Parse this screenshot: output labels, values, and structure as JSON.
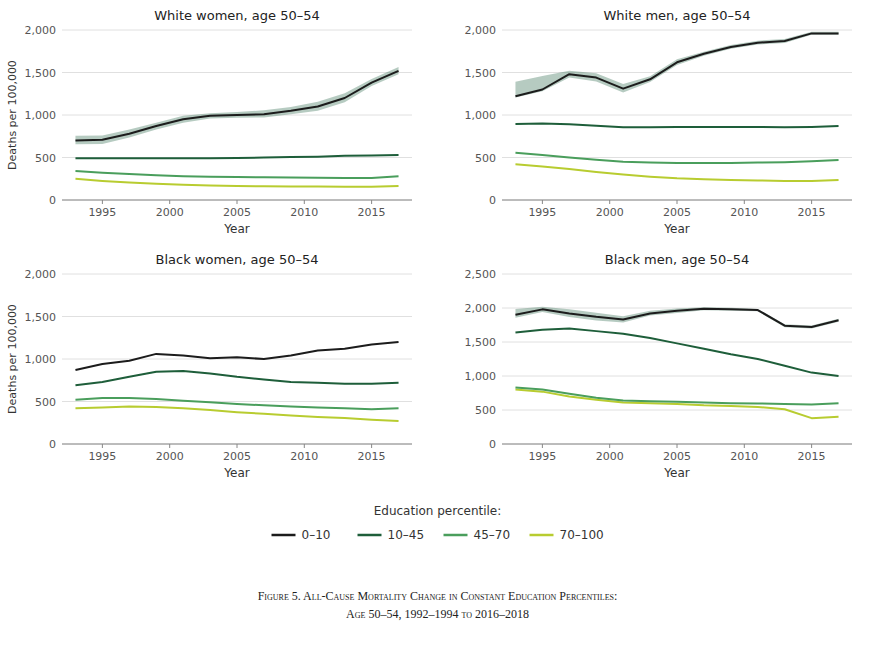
{
  "chart_data": [
    {
      "type": "line",
      "title": "White women, age 50–54",
      "xlabel": "Year",
      "ylabel": "Deaths per 100,000",
      "x": [
        1993,
        1995,
        1997,
        1999,
        2001,
        2003,
        2005,
        2007,
        2009,
        2011,
        2013,
        2015,
        2017
      ],
      "xlim": [
        1992,
        2018
      ],
      "xticks": [
        1995,
        2000,
        2005,
        2010,
        2015
      ],
      "ylim": [
        0,
        2000
      ],
      "yticks": [
        0,
        500,
        {
          "value": 1000,
          "label": "1,000"
        },
        {
          "value": 1500,
          "label": "1,500"
        },
        {
          "value": 2000,
          "label": "2,000"
        }
      ],
      "grid": true,
      "legend": "bottom",
      "series": [
        {
          "name": "0–10",
          "color": "#1c1c1c",
          "values": [
            700,
            710,
            780,
            870,
            950,
            990,
            1000,
            1010,
            1050,
            1100,
            1200,
            1380,
            1520
          ]
        },
        {
          "name": "10–45",
          "color": "#1e5e3a",
          "values": [
            490,
            490,
            490,
            490,
            490,
            490,
            495,
            500,
            505,
            510,
            520,
            525,
            530
          ]
        },
        {
          "name": "45–70",
          "color": "#4a9e5c",
          "values": [
            340,
            320,
            305,
            290,
            280,
            275,
            270,
            268,
            265,
            262,
            260,
            258,
            280
          ]
        },
        {
          "name": "70–100",
          "color": "#b8cc30",
          "values": [
            250,
            225,
            205,
            190,
            180,
            170,
            165,
            162,
            160,
            158,
            155,
            155,
            165
          ]
        }
      ],
      "ci_upper": [
        755,
        760,
        830,
        910,
        990,
        1020,
        1035,
        1055,
        1095,
        1155,
        1255,
        1425,
        1565
      ],
      "ci_lower": [
        655,
        660,
        735,
        830,
        910,
        960,
        968,
        970,
        1008,
        1050,
        1150,
        1340,
        1480
      ],
      "ci_color": "#2d6b4e"
    },
    {
      "type": "line",
      "title": "White men, age 50–54",
      "xlabel": "Year",
      "x": [
        1993,
        1995,
        1997,
        1999,
        2001,
        2003,
        2005,
        2007,
        2009,
        2011,
        2013,
        2015,
        2017
      ],
      "xlim": [
        1992,
        2018
      ],
      "xticks": [
        1995,
        2000,
        2005,
        2010,
        2015
      ],
      "ylim": [
        0,
        2000
      ],
      "yticks": [
        0,
        500,
        {
          "value": 1000,
          "label": "1,000"
        },
        {
          "value": 1500,
          "label": "1,500"
        },
        {
          "value": 2000,
          "label": "2,000"
        }
      ],
      "grid": true,
      "series": [
        {
          "name": "0–10",
          "color": "#1c1c1c",
          "values": [
            1220,
            1300,
            1480,
            1440,
            1310,
            1420,
            1620,
            1720,
            1800,
            1850,
            1870,
            1960,
            1960
          ]
        },
        {
          "name": "10–45",
          "color": "#1e5e3a",
          "values": [
            895,
            900,
            890,
            875,
            855,
            855,
            860,
            860,
            860,
            860,
            855,
            860,
            870
          ]
        },
        {
          "name": "45–70",
          "color": "#4a9e5c",
          "values": [
            555,
            530,
            500,
            475,
            450,
            440,
            435,
            435,
            435,
            440,
            445,
            455,
            470
          ]
        },
        {
          "name": "70–100",
          "color": "#b8cc30",
          "values": [
            420,
            395,
            365,
            330,
            300,
            275,
            255,
            245,
            235,
            230,
            225,
            225,
            235
          ]
        }
      ],
      "ci_upper": [
        1390,
        1460,
        1520,
        1490,
        1365,
        1455,
        1655,
        1745,
        1825,
        1875,
        1895,
        1978,
        1978
      ],
      "ci_lower": [
        1205,
        1280,
        1440,
        1395,
        1265,
        1388,
        1588,
        1698,
        1778,
        1828,
        1848,
        1943,
        1943
      ],
      "ci_color": "#2d6b4e"
    },
    {
      "type": "line",
      "title": "Black women, age 50–54",
      "xlabel": "Year",
      "ylabel": "Deaths per 100,000",
      "x": [
        1993,
        1995,
        1997,
        1999,
        2001,
        2003,
        2005,
        2007,
        2009,
        2011,
        2013,
        2015,
        2017
      ],
      "xlim": [
        1992,
        2018
      ],
      "xticks": [
        1995,
        2000,
        2005,
        2010,
        2015
      ],
      "ylim": [
        0,
        2000
      ],
      "yticks": [
        0,
        500,
        {
          "value": 1000,
          "label": "1,000"
        },
        {
          "value": 1500,
          "label": "1,500"
        },
        {
          "value": 2000,
          "label": "2,000"
        }
      ],
      "grid": true,
      "series": [
        {
          "name": "0–10",
          "color": "#1c1c1c",
          "values": [
            870,
            940,
            980,
            1060,
            1040,
            1010,
            1020,
            1000,
            1040,
            1100,
            1120,
            1170,
            1200
          ]
        },
        {
          "name": "10–45",
          "color": "#1e5e3a",
          "values": [
            690,
            730,
            790,
            850,
            860,
            830,
            790,
            760,
            730,
            720,
            710,
            710,
            720
          ]
        },
        {
          "name": "45–70",
          "color": "#4a9e5c",
          "values": [
            520,
            540,
            540,
            530,
            510,
            490,
            470,
            455,
            440,
            430,
            420,
            410,
            420
          ]
        },
        {
          "name": "70–100",
          "color": "#b8cc30",
          "values": [
            420,
            430,
            440,
            435,
            420,
            400,
            375,
            355,
            335,
            318,
            305,
            285,
            270
          ]
        }
      ]
    },
    {
      "type": "line",
      "title": "Black men, age 50–54",
      "xlabel": "Year",
      "x": [
        1993,
        1995,
        1997,
        1999,
        2001,
        2003,
        2005,
        2007,
        2009,
        2011,
        2013,
        2015,
        2017
      ],
      "xlim": [
        1992,
        2018
      ],
      "xticks": [
        1995,
        2000,
        2005,
        2010,
        2015
      ],
      "ylim": [
        0,
        2500
      ],
      "yticks": [
        0,
        500,
        {
          "value": 1000,
          "label": "1,000"
        },
        {
          "value": 1500,
          "label": "1,500"
        },
        {
          "value": 2000,
          "label": "2,000"
        },
        {
          "value": 2500,
          "label": "2,500"
        }
      ],
      "grid": true,
      "series": [
        {
          "name": "0–10",
          "color": "#1c1c1c",
          "values": [
            1900,
            1980,
            1920,
            1870,
            1830,
            1920,
            1960,
            1990,
            1980,
            1970,
            1740,
            1720,
            1820
          ]
        },
        {
          "name": "10–45",
          "color": "#1e5e3a",
          "values": [
            1640,
            1680,
            1700,
            1660,
            1620,
            1560,
            1480,
            1400,
            1320,
            1250,
            1150,
            1050,
            1000
          ]
        },
        {
          "name": "45–70",
          "color": "#4a9e5c",
          "values": [
            830,
            800,
            740,
            680,
            640,
            630,
            620,
            610,
            600,
            595,
            590,
            580,
            600
          ]
        },
        {
          "name": "70–100",
          "color": "#b8cc30",
          "values": [
            800,
            770,
            700,
            650,
            610,
            600,
            590,
            570,
            560,
            545,
            510,
            380,
            400
          ]
        }
      ],
      "ci_upper": [
        1985,
        2020,
        1980,
        1930,
        1880,
        1960,
        1992,
        2012,
        2002,
        1987,
        1762,
        1742,
        1842
      ],
      "ci_lower": [
        1858,
        1942,
        1868,
        1818,
        1788,
        1888,
        1928,
        1968,
        1958,
        1953,
        1718,
        1698,
        1798
      ],
      "ci_color": "#2d6b4e"
    }
  ],
  "legend_title": "Education percentile:",
  "caption": [
    "Figure 5. All-Cause Mortality Change in Constant Education Percentiles:",
    "Age 50–54, 1992–1994 to 2016–2018"
  ]
}
